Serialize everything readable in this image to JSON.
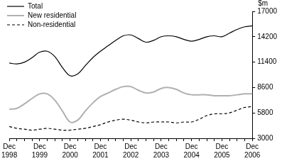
{
  "chart_data": {
    "type": "line",
    "y_label": "$m",
    "categories": [
      "Dec 1998",
      null,
      null,
      null,
      "Dec 1999",
      null,
      null,
      null,
      "Dec 2000",
      null,
      null,
      null,
      "Dec 2001",
      null,
      null,
      null,
      "Dec 2002",
      null,
      null,
      null,
      "Dec 2003",
      null,
      null,
      null,
      "Dec 2004",
      null,
      null,
      null,
      "Dec 2005",
      null,
      null,
      null,
      "Dec 2006"
    ],
    "series": [
      {
        "name": "Total",
        "color": "#000000",
        "line_style": "solid",
        "values": [
          11300,
          11200,
          11400,
          11900,
          12500,
          12600,
          12000,
          10800,
          9900,
          10100,
          11000,
          11900,
          12600,
          13200,
          13800,
          14300,
          14400,
          14000,
          13600,
          13800,
          14200,
          14300,
          14200,
          13900,
          13700,
          13900,
          14200,
          14300,
          14200,
          14600,
          15000,
          15300,
          15400
        ]
      },
      {
        "name": "New residential",
        "color": "#b0b0b0",
        "line_style": "solid",
        "values": [
          6200,
          6300,
          6800,
          7400,
          7900,
          7900,
          7200,
          6000,
          4800,
          5000,
          6000,
          6900,
          7600,
          8000,
          8400,
          8700,
          8700,
          8300,
          8000,
          8100,
          8500,
          8600,
          8400,
          8000,
          7800,
          7800,
          7800,
          7700,
          7700,
          7700,
          7800,
          7900,
          7900
        ]
      },
      {
        "name": "Non-residential",
        "color": "#000000",
        "line_style": "dashed",
        "values": [
          4300,
          4100,
          4000,
          3900,
          4000,
          4100,
          4000,
          3900,
          3900,
          4000,
          4100,
          4300,
          4500,
          4800,
          5000,
          5100,
          5000,
          4800,
          4700,
          4800,
          4800,
          4800,
          4700,
          4800,
          4800,
          5100,
          5500,
          5700,
          5700,
          5800,
          6100,
          6400,
          6500
        ]
      }
    ],
    "ylim": [
      3000,
      17000
    ],
    "yticks": [
      3000,
      5800,
      8600,
      11400,
      14200,
      17000
    ],
    "grid": false,
    "legend": "top-left"
  }
}
